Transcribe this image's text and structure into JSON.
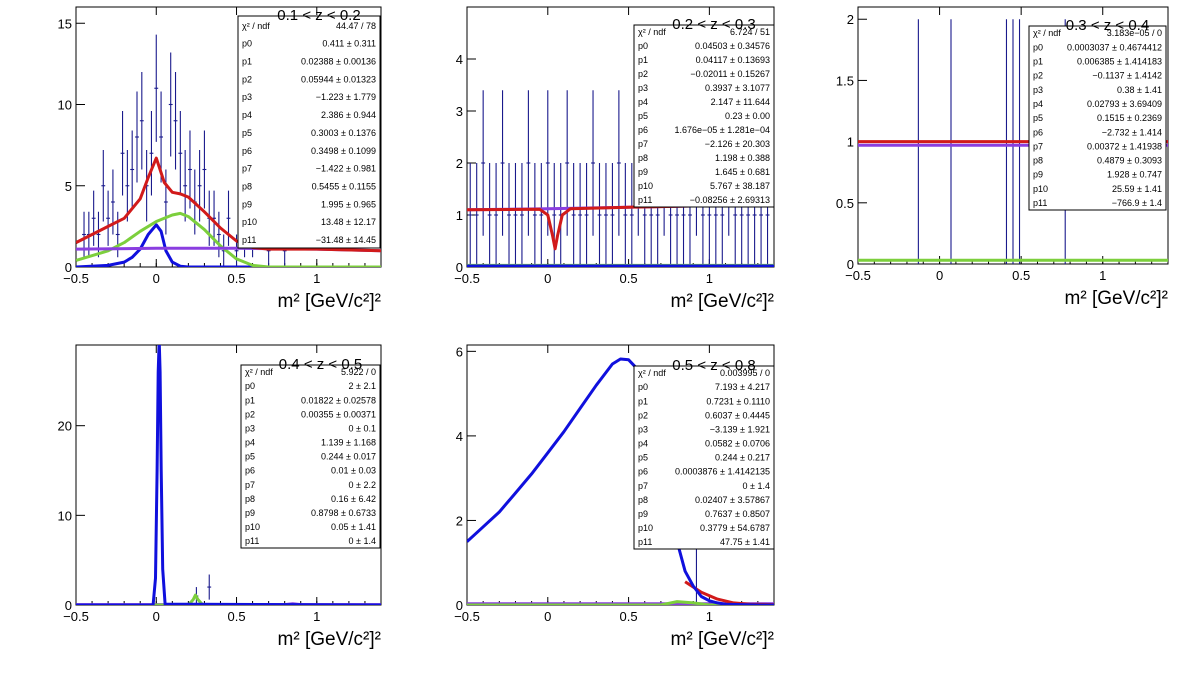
{
  "colors": {
    "data": "#1a1a8c",
    "total": "#d11a1a",
    "peak": "#1010dd",
    "broad": "#7ccf3c",
    "background": "#8a3ee0",
    "frame": "#000000"
  },
  "chart_data": [
    {
      "type": "line",
      "title": "0.1 < z < 0.2",
      "xlabel": "m² [GeV/c²]²",
      "ylabel": "",
      "xlim": [
        -0.5,
        1.4
      ],
      "ylim": [
        0,
        16
      ],
      "xticks": [
        -0.5,
        0,
        0.5,
        1
      ],
      "yticks": [
        0,
        5,
        10,
        15
      ],
      "stats": [
        {
          "name": "χ² / ndf",
          "value": "44.47 / 78"
        },
        {
          "name": "p0",
          "value": "0.411 ± 0.311"
        },
        {
          "name": "p1",
          "value": "0.02388 ± 0.00136"
        },
        {
          "name": "p2",
          "value": "0.05944 ± 0.01323"
        },
        {
          "name": "p3",
          "value": "−1.223 ± 1.779"
        },
        {
          "name": "p4",
          "value": "2.386 ± 0.944"
        },
        {
          "name": "p5",
          "value": "0.3003 ± 0.1376"
        },
        {
          "name": "p6",
          "value": "0.3498 ± 0.1099"
        },
        {
          "name": "p7",
          "value": "−1.422 ± 0.981"
        },
        {
          "name": "p8",
          "value": "0.5455 ± 0.1155"
        },
        {
          "name": "p9",
          "value": "1.995 ± 0.965"
        },
        {
          "name": "p10",
          "value": "13.48 ± 12.17"
        },
        {
          "name": "p11",
          "value": "−31.48 ± 14.45"
        }
      ],
      "points": {
        "x": [
          -0.45,
          -0.42,
          -0.39,
          -0.36,
          -0.33,
          -0.3,
          -0.27,
          -0.24,
          -0.21,
          -0.18,
          -0.15,
          -0.12,
          -0.09,
          -0.06,
          -0.03,
          0.0,
          0.03,
          0.06,
          0.09,
          0.12,
          0.15,
          0.18,
          0.21,
          0.24,
          0.27,
          0.3,
          0.33,
          0.36,
          0.39,
          0.42,
          0.45,
          0.5,
          0.55,
          0.6,
          0.7,
          0.8
        ],
        "y": [
          2,
          2,
          3,
          2,
          5,
          3,
          4,
          2,
          7,
          5,
          6,
          8,
          9,
          5,
          7,
          11,
          8,
          4,
          10,
          9,
          7,
          5,
          6,
          4,
          5,
          6,
          3,
          3,
          2,
          1,
          3,
          1,
          2,
          2,
          1,
          1
        ],
        "err": [
          1.4,
          1.4,
          1.7,
          1.4,
          2.2,
          1.7,
          2.0,
          1.4,
          2.6,
          2.2,
          2.4,
          2.8,
          3.0,
          2.2,
          2.6,
          3.3,
          2.8,
          2.0,
          3.2,
          3.0,
          2.6,
          2.2,
          2.4,
          2.0,
          2.2,
          2.4,
          1.7,
          1.7,
          1.4,
          1.0,
          1.7,
          1.0,
          1.4,
          1.4,
          1.0,
          1.0
        ]
      },
      "series": [
        {
          "color": "#1010dd",
          "x": [
            -0.5,
            -0.3,
            -0.2,
            -0.15,
            -0.1,
            -0.05,
            0,
            0.03,
            0.06,
            0.1,
            0.15,
            0.2,
            1.4
          ],
          "y": [
            0,
            0.1,
            0.3,
            0.6,
            1.1,
            2.0,
            2.6,
            2.2,
            1.0,
            0.3,
            0.05,
            0,
            0
          ]
        },
        {
          "color": "#7ccf3c",
          "x": [
            -0.5,
            -0.3,
            -0.2,
            -0.1,
            0,
            0.1,
            0.15,
            0.2,
            0.3,
            0.4,
            0.5,
            0.6,
            0.7,
            1.4
          ],
          "y": [
            0.4,
            1.0,
            1.5,
            2.2,
            2.8,
            3.2,
            3.3,
            3.1,
            2.3,
            1.3,
            0.5,
            0.1,
            0,
            0
          ]
        },
        {
          "color": "#8a3ee0",
          "x": [
            -0.5,
            0,
            0.5,
            1,
            1.4
          ],
          "y": [
            1.1,
            1.15,
            1.15,
            1.1,
            1.0
          ]
        },
        {
          "color": "#d11a1a",
          "x": [
            -0.5,
            -0.4,
            -0.3,
            -0.2,
            -0.1,
            -0.05,
            0,
            0.05,
            0.1,
            0.15,
            0.2,
            0.3,
            0.4,
            0.5,
            0.6,
            0.7,
            0.8,
            1.0,
            1.4
          ],
          "y": [
            1.5,
            2.0,
            2.5,
            3.0,
            4.2,
            5.5,
            6.7,
            5.2,
            4.6,
            4.5,
            4.3,
            3.4,
            2.4,
            1.6,
            1.2,
            1.1,
            1.1,
            1.1,
            1.0
          ]
        }
      ]
    },
    {
      "type": "line",
      "title": "0.2 < z < 0.3",
      "xlabel": "m² [GeV/c²]²",
      "ylabel": "",
      "xlim": [
        -0.5,
        1.4
      ],
      "ylim": [
        0,
        5
      ],
      "xticks": [
        -0.5,
        0,
        0.5,
        1
      ],
      "yticks": [
        0,
        1,
        2,
        3,
        4
      ],
      "stats": [
        {
          "name": "χ² / ndf",
          "value": "6.724 / 51"
        },
        {
          "name": "p0",
          "value": "0.04503 ± 0.34576"
        },
        {
          "name": "p1",
          "value": "0.04117 ± 0.13693"
        },
        {
          "name": "p2",
          "value": "−0.02011 ± 0.15267"
        },
        {
          "name": "p3",
          "value": "0.3937 ± 3.1077"
        },
        {
          "name": "p4",
          "value": "2.147 ± 11.644"
        },
        {
          "name": "p5",
          "value": "0.23 ± 0.00"
        },
        {
          "name": "p6",
          "value": "1.676e−05 ± 1.281e−04"
        },
        {
          "name": "p7",
          "value": "−2.126 ± 20.303"
        },
        {
          "name": "p8",
          "value": "1.198 ± 0.388"
        },
        {
          "name": "p9",
          "value": "1.645 ± 0.681"
        },
        {
          "name": "p10",
          "value": "5.767 ± 38.187"
        },
        {
          "name": "p11",
          "value": "−0.08256 ± 2.69313"
        }
      ],
      "points": {
        "x": [
          -0.48,
          -0.44,
          -0.4,
          -0.36,
          -0.32,
          -0.28,
          -0.24,
          -0.2,
          -0.16,
          -0.12,
          -0.08,
          -0.04,
          0.0,
          0.04,
          0.08,
          0.12,
          0.16,
          0.2,
          0.24,
          0.28,
          0.32,
          0.36,
          0.4,
          0.44,
          0.48,
          0.52,
          0.56,
          0.6,
          0.64,
          0.68,
          0.72,
          0.76,
          0.8,
          0.84,
          0.88,
          0.92,
          0.96,
          1.0,
          1.04,
          1.08,
          1.12,
          1.16,
          1.2,
          1.24,
          1.28,
          1.32,
          1.36
        ],
        "y": [
          1,
          1,
          2,
          1,
          1,
          2,
          1,
          1,
          1,
          2,
          1,
          1,
          2,
          1,
          1,
          2,
          1,
          1,
          1,
          2,
          1,
          1,
          1,
          2,
          1,
          1,
          2,
          1,
          1,
          1,
          2,
          1,
          1,
          1,
          1,
          2,
          1,
          1,
          1,
          1,
          2,
          1,
          1,
          1,
          1,
          1,
          1
        ],
        "err": [
          1,
          1,
          1.4,
          1,
          1,
          1.4,
          1,
          1,
          1,
          1.4,
          1,
          1,
          1.4,
          1,
          1,
          1.4,
          1,
          1,
          1,
          1.4,
          1,
          1,
          1,
          1.4,
          1,
          1,
          1.4,
          1,
          1,
          1,
          1.4,
          1,
          1,
          1,
          1,
          1.4,
          1,
          1,
          1,
          1,
          1.4,
          1,
          1,
          1,
          1,
          1,
          1
        ]
      },
      "series": [
        {
          "color": "#7ccf3c",
          "x": [
            -0.5,
            1.4
          ],
          "y": [
            0.03,
            0.03
          ]
        },
        {
          "color": "#1010dd",
          "x": [
            -0.5,
            1.4
          ],
          "y": [
            0.02,
            0.02
          ]
        },
        {
          "color": "#8a3ee0",
          "x": [
            -0.5,
            0,
            0.5,
            1,
            1.4
          ],
          "y": [
            1.1,
            1.12,
            1.15,
            1.18,
            1.2
          ]
        },
        {
          "color": "#d11a1a",
          "x": [
            -0.5,
            -0.05,
            0.0,
            0.03,
            0.045,
            0.06,
            0.09,
            0.14,
            0.5,
            1,
            1.4
          ],
          "y": [
            1.1,
            1.11,
            1.0,
            0.6,
            0.35,
            0.6,
            1.0,
            1.12,
            1.15,
            1.18,
            1.2
          ]
        }
      ]
    },
    {
      "type": "line",
      "title": "0.3 < z < 0.4",
      "xlabel": "m² [GeV/c²]²",
      "ylabel": "",
      "xlim": [
        -0.5,
        1.4
      ],
      "ylim": [
        0,
        2.1
      ],
      "xticks": [
        -0.5,
        0,
        0.5,
        1
      ],
      "yticks": [
        0,
        0.5,
        1,
        1.5,
        2
      ],
      "stats": [
        {
          "name": "χ² / ndf",
          "value": "3.183e−05 / 0"
        },
        {
          "name": "p0",
          "value": "0.0003037 ± 0.4674412"
        },
        {
          "name": "p1",
          "value": "0.006385 ± 1.414183"
        },
        {
          "name": "p2",
          "value": "−0.1137 ± 1.4142"
        },
        {
          "name": "p3",
          "value": "0.38 ± 1.41"
        },
        {
          "name": "p4",
          "value": "0.02793 ± 3.69409"
        },
        {
          "name": "p5",
          "value": "0.1515 ± 0.2369"
        },
        {
          "name": "p6",
          "value": "−2.732 ± 1.414"
        },
        {
          "name": "p7",
          "value": "0.00372 ± 1.41938"
        },
        {
          "name": "p8",
          "value": "0.4879 ± 0.3093"
        },
        {
          "name": "p9",
          "value": "1.928 ± 0.747"
        },
        {
          "name": "p10",
          "value": "25.59 ± 1.41"
        },
        {
          "name": "p11",
          "value": "−766.9 ± 1.4"
        }
      ],
      "points": {
        "x": [
          -0.13,
          0.07,
          0.41,
          0.45,
          0.49,
          0.77
        ],
        "y": [
          1,
          1,
          1,
          1,
          1,
          1
        ],
        "err": [
          1,
          1,
          1,
          1,
          1,
          1
        ]
      },
      "series": [
        {
          "color": "#7ccf3c",
          "x": [
            -0.5,
            1.4
          ],
          "y": [
            0.03,
            0.03
          ]
        },
        {
          "color": "#d11a1a",
          "x": [
            -0.5,
            1.4
          ],
          "y": [
            1.0,
            1.0
          ]
        },
        {
          "color": "#8a3ee0",
          "x": [
            -0.5,
            1.4
          ],
          "y": [
            0.97,
            0.97
          ]
        }
      ]
    },
    {
      "type": "line",
      "title": "0.4 < z < 0.5",
      "xlabel": "m² [GeV/c²]²",
      "ylabel": "",
      "xlim": [
        -0.5,
        1.4
      ],
      "ylim": [
        0,
        29
      ],
      "xticks": [
        -0.5,
        0,
        0.5,
        1
      ],
      "yticks": [
        0,
        10,
        20
      ],
      "stats": [
        {
          "name": "χ² / ndf",
          "value": "5.922 / 0"
        },
        {
          "name": "p0",
          "value": "2 ± 2.1"
        },
        {
          "name": "p1",
          "value": "0.01822 ± 0.02578"
        },
        {
          "name": "p2",
          "value": "0.00355 ± 0.00371"
        },
        {
          "name": "p3",
          "value": "0 ± 0.1"
        },
        {
          "name": "p4",
          "value": "1.139 ± 1.168"
        },
        {
          "name": "p5",
          "value": "0.244 ± 0.017"
        },
        {
          "name": "p6",
          "value": "0.01 ± 0.03"
        },
        {
          "name": "p7",
          "value": "0 ± 2.2"
        },
        {
          "name": "p8",
          "value": "0.16 ± 6.42"
        },
        {
          "name": "p9",
          "value": "0.8798 ± 0.6733"
        },
        {
          "name": "p10",
          "value": "0.05 ± 1.41"
        },
        {
          "name": "p11",
          "value": "0 ± 1.4"
        }
      ],
      "points": {
        "x": [
          0.02,
          0.25,
          0.33
        ],
        "y": [
          29,
          1,
          2
        ],
        "err": [
          5.4,
          1,
          1.4
        ]
      },
      "series": [
        {
          "color": "#8a3ee0",
          "x": [
            -0.5,
            0.8,
            0.85,
            0.9,
            1.4
          ],
          "y": [
            0.05,
            0.05,
            0.15,
            0.05,
            0.05
          ]
        },
        {
          "color": "#7ccf3c",
          "x": [
            -0.5,
            0.2,
            0.23,
            0.244,
            0.26,
            0.29,
            1.4
          ],
          "y": [
            0,
            0,
            0.6,
            1.1,
            0.6,
            0,
            0
          ]
        },
        {
          "color": "#1010dd",
          "x": [
            -0.5,
            -0.02,
            -0.005,
            0.005,
            0.012,
            0.018,
            0.024,
            0.031,
            0.04,
            0.055,
            1.4
          ],
          "y": [
            0,
            0,
            3,
            15,
            26,
            29.5,
            26,
            15,
            4,
            0.1,
            0
          ]
        }
      ]
    },
    {
      "type": "line",
      "title": "0.5 < z < 0.8",
      "xlabel": "m² [GeV/c²]²",
      "ylabel": "",
      "xlim": [
        -0.5,
        1.4
      ],
      "ylim": [
        0,
        6.15
      ],
      "xticks": [
        -0.5,
        0,
        0.5,
        1
      ],
      "yticks": [
        0,
        2,
        4,
        6
      ],
      "stats": [
        {
          "name": "χ² / ndf",
          "value": "0.003995 / 0"
        },
        {
          "name": "p0",
          "value": "7.193 ± 4.217"
        },
        {
          "name": "p1",
          "value": "0.7231 ± 0.1110"
        },
        {
          "name": "p2",
          "value": "0.6037 ± 0.4445"
        },
        {
          "name": "p3",
          "value": "−3.139 ± 1.921"
        },
        {
          "name": "p4",
          "value": "0.0582 ± 0.0706"
        },
        {
          "name": "p5",
          "value": "0.244 ± 0.217"
        },
        {
          "name": "p6",
          "value": "0.0003876 ± 1.4142135"
        },
        {
          "name": "p7",
          "value": "0 ± 1.4"
        },
        {
          "name": "p8",
          "value": "0.02407 ± 3.57867"
        },
        {
          "name": "p9",
          "value": "0.7637 ± 0.8507"
        },
        {
          "name": "p10",
          "value": "0.3779 ± 54.6787"
        },
        {
          "name": "p11",
          "value": "47.75 ± 1.41"
        }
      ],
      "points": {
        "x": [
          0.92
        ],
        "y": [
          0
        ],
        "err": [
          1.5
        ]
      },
      "series": [
        {
          "color": "#8a3ee0",
          "x": [
            -0.5,
            1.4
          ],
          "y": [
            0.03,
            0.03
          ]
        },
        {
          "color": "#7ccf3c",
          "x": [
            -0.5,
            0.7,
            0.8,
            0.9,
            1.0,
            1.4
          ],
          "y": [
            0,
            0,
            0.08,
            0.05,
            0,
            0
          ]
        },
        {
          "color": "#d11a1a",
          "x": [
            0.85,
            0.95,
            1.05,
            1.15,
            1.25,
            1.4
          ],
          "y": [
            0.55,
            0.3,
            0.14,
            0.05,
            0.02,
            0.01
          ]
        },
        {
          "color": "#1010dd",
          "x": [
            -0.5,
            -0.4,
            -0.3,
            -0.2,
            -0.1,
            0,
            0.1,
            0.2,
            0.3,
            0.4,
            0.45,
            0.5,
            0.55,
            0.6,
            0.65,
            0.7,
            0.75,
            0.8,
            0.85,
            0.9,
            0.95,
            1.0,
            1.05,
            1.1,
            1.2,
            1.3,
            1.4
          ],
          "y": [
            1.5,
            1.85,
            2.2,
            2.65,
            3.1,
            3.6,
            4.1,
            4.65,
            5.2,
            5.7,
            5.82,
            5.8,
            5.6,
            5.1,
            4.3,
            3.3,
            2.3,
            1.5,
            0.8,
            0.45,
            0.2,
            0.1,
            0.05,
            0.02,
            0.01,
            0,
            0
          ]
        }
      ]
    }
  ]
}
